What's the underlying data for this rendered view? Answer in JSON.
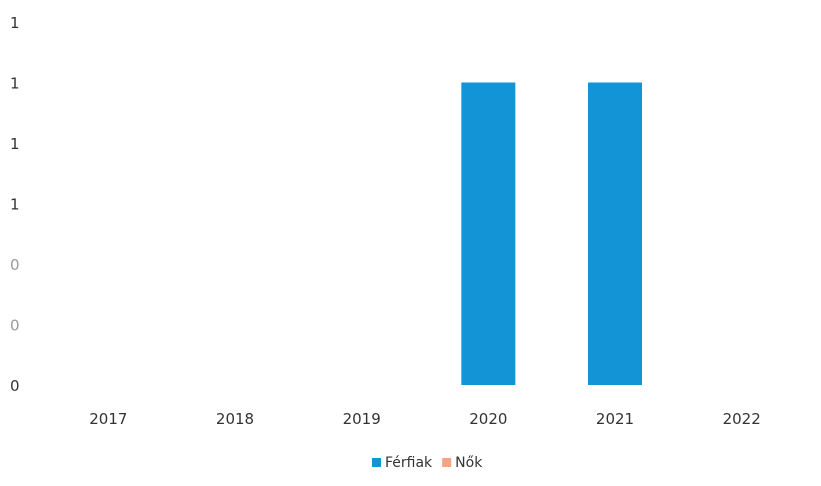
{
  "chart_data": {
    "type": "bar",
    "stacked": true,
    "title": "",
    "xlabel": "",
    "ylabel": "",
    "categories": [
      "2017",
      "2018",
      "2019",
      "2020",
      "2021",
      "2022"
    ],
    "y_tick_labels": [
      "0",
      "0",
      "0",
      "1",
      "1",
      "1",
      "1"
    ],
    "ylim": [
      0,
      1.2
    ],
    "series": [
      {
        "name": "Férfiak",
        "color": "#1394D6",
        "values": [
          0,
          0,
          0,
          1,
          1,
          0
        ]
      },
      {
        "name": "Nők",
        "color": "#F4A384",
        "values": [
          0,
          0,
          0,
          0,
          0,
          0
        ]
      }
    ],
    "grid": false,
    "legend_position": "bottom",
    "colors": {
      "tick_text": "#333333",
      "tick_text_faded": "#9a9a9a"
    }
  }
}
